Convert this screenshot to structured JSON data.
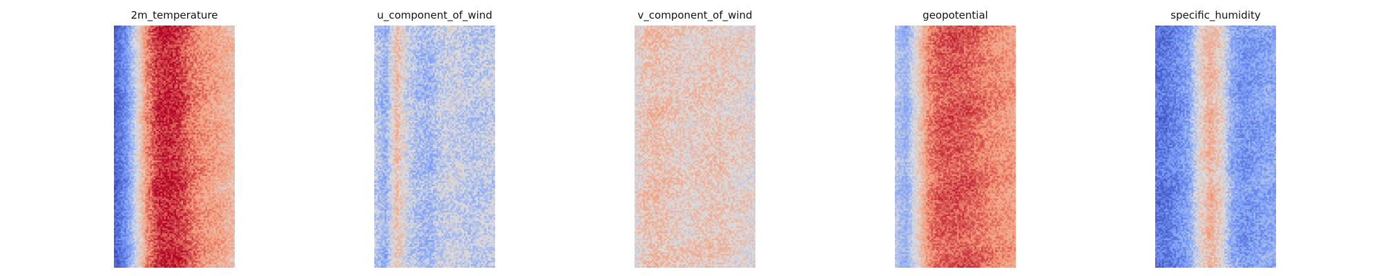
{
  "figure": {
    "background": "#ffffff"
  },
  "chart_data": [
    {
      "type": "heatmap",
      "title": "2m_temperature",
      "colormap": "coolwarm",
      "axes_visible": false,
      "grid": false,
      "column_profile": [
        -0.85,
        -0.6,
        -0.05,
        0.55,
        0.85,
        0.88,
        0.82,
        0.65,
        0.52,
        0.45,
        0.38,
        0.28
      ],
      "noise": 0.18,
      "seed": 11
    },
    {
      "type": "heatmap",
      "title": "u_component_of_wind",
      "colormap": "coolwarm",
      "axes_visible": false,
      "grid": false,
      "column_profile": [
        -0.15,
        -0.35,
        0.25,
        -0.1,
        -0.25,
        -0.3,
        -0.15,
        -0.1,
        -0.12,
        -0.18,
        -0.15,
        -0.12
      ],
      "noise": 0.22,
      "seed": 23
    },
    {
      "type": "heatmap",
      "title": "v_component_of_wind",
      "colormap": "coolwarm",
      "axes_visible": false,
      "grid": false,
      "column_profile": [
        0.05,
        0.2,
        0.25,
        0.18,
        0.15,
        0.12,
        0.15,
        0.18,
        0.15,
        0.12,
        0.1,
        0.05
      ],
      "noise": 0.22,
      "seed": 37
    },
    {
      "type": "heatmap",
      "title": "geopotential",
      "colormap": "coolwarm",
      "axes_visible": false,
      "grid": false,
      "column_profile": [
        -0.2,
        -0.35,
        0.1,
        0.55,
        0.7,
        0.72,
        0.72,
        0.68,
        0.62,
        0.55,
        0.5,
        0.45
      ],
      "noise": 0.16,
      "seed": 41
    },
    {
      "type": "heatmap",
      "title": "specific_humidity",
      "colormap": "coolwarm",
      "axes_visible": false,
      "grid": false,
      "column_profile": [
        -0.75,
        -0.72,
        -0.6,
        -0.45,
        0.05,
        0.35,
        0.1,
        -0.4,
        -0.55,
        -0.5,
        -0.45,
        -0.42
      ],
      "noise": 0.2,
      "seed": 53
    }
  ]
}
